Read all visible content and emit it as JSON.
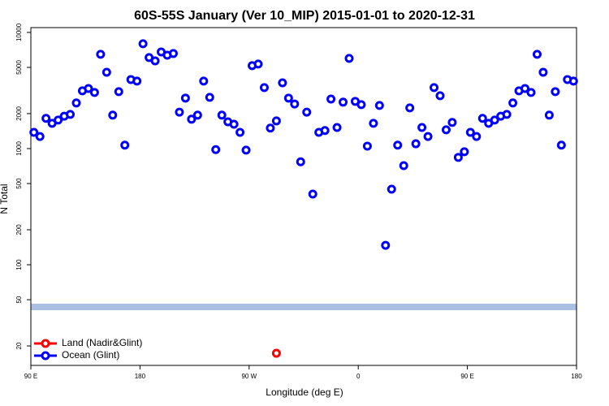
{
  "chart_data": {
    "type": "scatter",
    "title": "60S-55S January (Ver 10_MIP)   2015-01-01 to 2020-12-31",
    "x_label": "Longitude (deg E)",
    "y_label": "N Total",
    "log_y": true,
    "legend": "lower left",
    "xlim": [
      90,
      540
    ],
    "ylim": [
      13.6,
      11000
    ],
    "xticks": [
      {
        "value": 90,
        "label": "90 E"
      },
      180,
      {
        "value": 270,
        "label": "90 W"
      },
      {
        "value": 360,
        "label": "0"
      },
      {
        "value": 450,
        "label": "90 E"
      },
      {
        "value": 540,
        "label": "180"
      }
    ],
    "yticks": [
      20,
      50,
      100,
      200,
      500,
      1000,
      2000,
      5000,
      10000
    ],
    "series": [
      {
        "name": "Land (Nadir&Glint)",
        "color": "#ff0000",
        "x": [
          292.5
        ],
        "values": [
          17.3
        ]
      },
      {
        "name": "Ocean (Glint)",
        "color": "#0000ff",
        "x": [
          92.5,
          97.5,
          102.5,
          107.5,
          112.5,
          117.5,
          122.5,
          127.5,
          132.5,
          137.5,
          142.5,
          147.5,
          152.5,
          157.5,
          162.5,
          167.5,
          172.5,
          177.5,
          182.5,
          187.5,
          192.5,
          197.5,
          202.5,
          207.5,
          212.5,
          217.5,
          222.5,
          227.5,
          232.5,
          237.5,
          242.5,
          247.5,
          252.5,
          257.5,
          262.5,
          267.5,
          272.5,
          277.5,
          282.5,
          287.5,
          292.5,
          297.5,
          302.5,
          307.5,
          312.5,
          317.5,
          322.5,
          327.5,
          332.5,
          337.5,
          342.5,
          347.5,
          352.5,
          357.5,
          362.5,
          367.5,
          372.5,
          377.5,
          382.5,
          387.5,
          392.5,
          397.5,
          402.5,
          407.5,
          412.5,
          417.5,
          422.5,
          427.5,
          432.5,
          437.5,
          442.5,
          447.5,
          452.5,
          457.5,
          462.5,
          467.5,
          472.5,
          477.5,
          482.5,
          487.5,
          492.5,
          497.5,
          502.5,
          507.5,
          512.5,
          517.5,
          522.5,
          527.5,
          532.5,
          537.5
        ],
        "values": [
          1380,
          1270,
          1820,
          1650,
          1760,
          1900,
          1970,
          2470,
          3140,
          3290,
          3040,
          6480,
          4540,
          1940,
          3090,
          1070,
          3930,
          3810,
          7990,
          6080,
          5690,
          6790,
          6370,
          6580,
          2060,
          2720,
          1790,
          1940,
          3810,
          2760,
          980,
          1940,
          1700,
          1620,
          1380,
          970,
          5170,
          5340,
          3350,
          1500,
          1730,
          3680,
          2720,
          2420,
          770,
          2060,
          406,
          1380,
          1430,
          2670,
          1520,
          2510,
          5980,
          2550,
          2390,
          1050,
          1650,
          2350,
          147,
          447,
          1070,
          713,
          2240,
          1100,
          1520,
          1270,
          3350,
          2850,
          1450,
          1680,
          840,
          940,
          1380,
          1270,
          1820,
          1650,
          1760,
          1900,
          1970,
          2470,
          3140,
          3290,
          3040,
          6480,
          4540,
          1940,
          3090,
          1070,
          3930,
          3810
        ]
      }
    ]
  }
}
